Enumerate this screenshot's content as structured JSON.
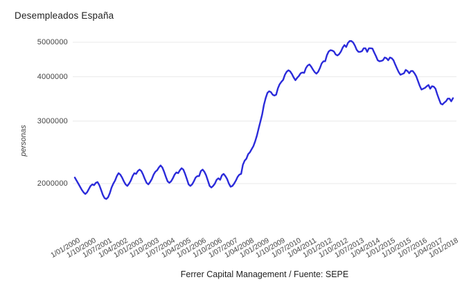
{
  "title": "Desempleados España",
  "footer": "Ferrer Capital Management / Fuente: SEPE",
  "colors": {
    "line": "#2b2bda",
    "grid": "#e8e8e8",
    "tick_text": "#424242",
    "title_text": "#212121",
    "background": "#ffffff"
  },
  "chart_data": {
    "type": "line",
    "title": "Desempleados España",
    "xlabel": "",
    "ylabel": "personas",
    "yscale": "log",
    "grid": true,
    "legend": "none",
    "source_note": "Ferrer Capital Management / Fuente: SEPE",
    "yticks": [
      2000000,
      3000000,
      4000000,
      5000000
    ],
    "ytick_labels": [
      "2000000",
      "3000000",
      "4000000",
      "5000000"
    ],
    "x_start": "2000-01",
    "x_end": "2018-01",
    "x_step_months": 1,
    "x_tick_every": 9,
    "xtick_labels": [
      "1/01/2000",
      "1/10/2000",
      "1/07/2001",
      "1/04/2002",
      "1/01/2003",
      "1/10/2003",
      "1/07/2004",
      "1/04/2005",
      "1/01/2006",
      "1/10/2006",
      "1/07/2007",
      "1/04/2008",
      "1/01/2009",
      "1/10/2009",
      "1/07/2010",
      "1/04/2011",
      "1/01/2012",
      "1/10/2012",
      "1/07/2013",
      "1/04/2014",
      "1/01/2015",
      "1/10/2015",
      "1/07/2016",
      "1/04/2017",
      "1/01/2018"
    ],
    "series": [
      {
        "name": "Desempleados",
        "color": "#2b2bda",
        "values": [
          2080000,
          2040000,
          2000000,
          1960000,
          1920000,
          1890000,
          1870000,
          1890000,
          1930000,
          1970000,
          1990000,
          1980000,
          2010000,
          2020000,
          1980000,
          1920000,
          1860000,
          1820000,
          1810000,
          1830000,
          1880000,
          1950000,
          2000000,
          2040000,
          2100000,
          2140000,
          2120000,
          2080000,
          2030000,
          1990000,
          1970000,
          2000000,
          2040000,
          2100000,
          2140000,
          2130000,
          2170000,
          2190000,
          2170000,
          2120000,
          2060000,
          2010000,
          1990000,
          2020000,
          2060000,
          2120000,
          2160000,
          2180000,
          2220000,
          2250000,
          2220000,
          2160000,
          2090000,
          2030000,
          2010000,
          2030000,
          2070000,
          2120000,
          2150000,
          2140000,
          2180000,
          2210000,
          2190000,
          2130000,
          2060000,
          1990000,
          1970000,
          1990000,
          2030000,
          2080000,
          2100000,
          2100000,
          2170000,
          2190000,
          2160000,
          2110000,
          2040000,
          1970000,
          1950000,
          1970000,
          2000000,
          2050000,
          2070000,
          2050000,
          2110000,
          2130000,
          2100000,
          2060000,
          2000000,
          1960000,
          1970000,
          2000000,
          2040000,
          2090000,
          2120000,
          2130000,
          2260000,
          2320000,
          2350000,
          2420000,
          2450000,
          2500000,
          2550000,
          2630000,
          2730000,
          2860000,
          2990000,
          3130000,
          3330000,
          3480000,
          3600000,
          3640000,
          3620000,
          3560000,
          3540000,
          3560000,
          3710000,
          3810000,
          3870000,
          3920000,
          4050000,
          4130000,
          4170000,
          4140000,
          4070000,
          3980000,
          3910000,
          3970000,
          4020000,
          4090000,
          4110000,
          4100000,
          4230000,
          4300000,
          4330000,
          4270000,
          4190000,
          4120000,
          4080000,
          4130000,
          4230000,
          4360000,
          4420000,
          4420000,
          4600000,
          4710000,
          4750000,
          4740000,
          4710000,
          4620000,
          4590000,
          4630000,
          4710000,
          4830000,
          4910000,
          4850000,
          4980000,
          5040000,
          5040000,
          4990000,
          4890000,
          4760000,
          4700000,
          4700000,
          4720000,
          4810000,
          4810000,
          4700000,
          4810000,
          4810000,
          4800000,
          4680000,
          4570000,
          4450000,
          4420000,
          4430000,
          4450000,
          4530000,
          4510000,
          4450000,
          4530000,
          4510000,
          4450000,
          4330000,
          4220000,
          4120000,
          4050000,
          4070000,
          4090000,
          4180000,
          4150000,
          4090000,
          4150000,
          4150000,
          4090000,
          4010000,
          3890000,
          3770000,
          3680000,
          3700000,
          3720000,
          3760000,
          3790000,
          3700000,
          3760000,
          3750000,
          3700000,
          3570000,
          3460000,
          3360000,
          3340000,
          3380000,
          3410000,
          3470000,
          3470000,
          3410000,
          3480000
        ]
      }
    ]
  }
}
